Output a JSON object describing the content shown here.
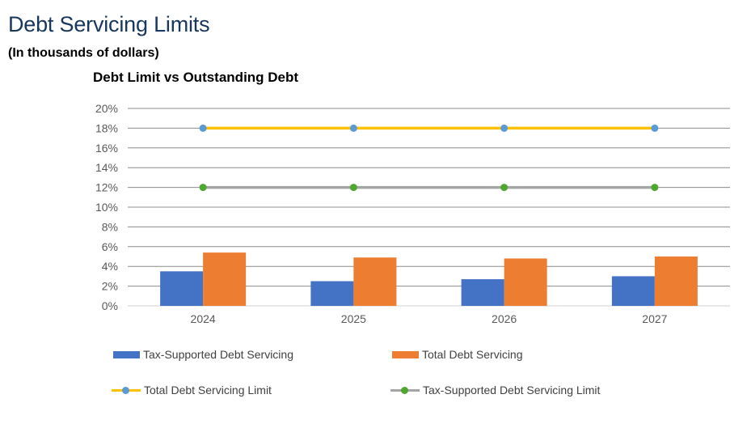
{
  "page": {
    "title": "Debt Servicing Limits",
    "subtitle": "(In thousands of dollars)"
  },
  "chart_data": {
    "type": "bar",
    "title": "Debt Limit vs Outstanding Debt",
    "categories": [
      "2024",
      "2025",
      "2026",
      "2027"
    ],
    "ylim": [
      0,
      20
    ],
    "y_ticks": [
      "0%",
      "2%",
      "4%",
      "6%",
      "8%",
      "10%",
      "12%",
      "14%",
      "16%",
      "18%",
      "20%"
    ],
    "y_unit": "%",
    "grid": true,
    "legend_position": "bottom",
    "series": [
      {
        "name": "Tax-Supported Debt Servicing",
        "kind": "bar",
        "color": "#4472c4",
        "values": [
          3.5,
          2.5,
          2.7,
          3.0
        ]
      },
      {
        "name": "Total Debt Servicing",
        "kind": "bar",
        "color": "#ed7d31",
        "values": [
          5.4,
          4.9,
          4.8,
          5.0
        ]
      },
      {
        "name": "Total Debt Servicing Limit",
        "kind": "line",
        "color": "#ffc000",
        "marker_color": "#5b9bd5",
        "values": [
          18,
          18,
          18,
          18
        ]
      },
      {
        "name": "Tax-Supported Debt Servicing Limit",
        "kind": "line",
        "color": "#a5a5a5",
        "marker_color": "#4ea72e",
        "values": [
          12,
          12,
          12,
          12
        ]
      }
    ]
  }
}
